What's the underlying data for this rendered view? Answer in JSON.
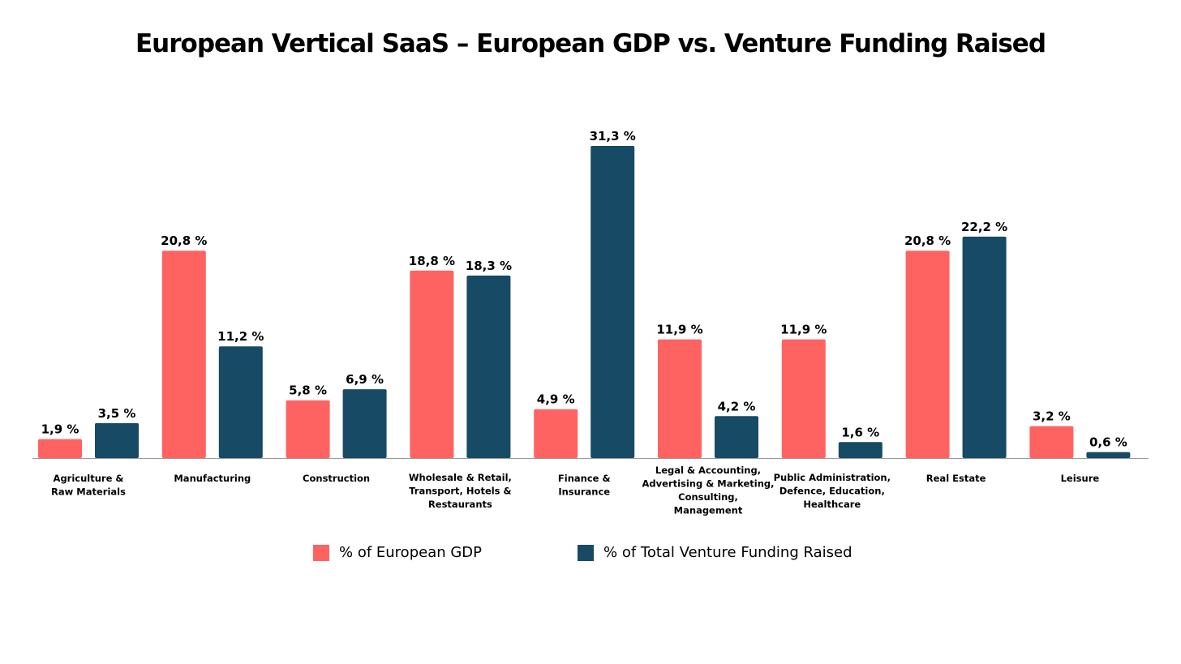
{
  "title": "European Vertical SaaS – European GDP vs. Venture Funding Raised",
  "chart_data": {
    "type": "bar",
    "title": "European Vertical SaaS – European GDP vs. Venture Funding Raised",
    "xlabel": "",
    "ylabel": "",
    "grid": false,
    "legend_position": "bottom",
    "categories": [
      [
        "Agriculture &",
        "Raw Materials"
      ],
      [
        "Manufacturing"
      ],
      [
        "Construction"
      ],
      [
        "Wholesale & Retail,",
        "Transport, Hotels &",
        "Restaurants"
      ],
      [
        "Finance &",
        "Insurance"
      ],
      [
        "Legal & Accounting,",
        "Advertising & Marketing,",
        "Consulting,",
        "Management"
      ],
      [
        "Public Administration,",
        "Defence, Education,",
        "Healthcare"
      ],
      [
        "Real Estate"
      ],
      [
        "Leisure"
      ]
    ],
    "series": [
      {
        "name": "% of European GDP",
        "color": "#ff6361",
        "values": [
          1.9,
          20.8,
          5.8,
          18.8,
          4.9,
          11.9,
          11.9,
          20.8,
          3.2
        ],
        "labels": [
          "1,9 %",
          "20,8 %",
          "5,8 %",
          "18,8 %",
          "4,9 %",
          "11,9 %",
          "11,9 %",
          "20,8 %",
          "3,2 %"
        ]
      },
      {
        "name": "% of Total Venture Funding Raised",
        "color": "#174a64",
        "values": [
          3.5,
          11.2,
          6.9,
          18.3,
          31.3,
          4.2,
          1.6,
          22.2,
          0.6
        ],
        "labels": [
          "3,5 %",
          "11,2 %",
          "6,9 %",
          "18,3 %",
          "31,3 %",
          "4,2 %",
          "1,6 %",
          "22,2 %",
          "0,6 %"
        ]
      }
    ],
    "ylim": [
      0,
      31.3
    ]
  }
}
